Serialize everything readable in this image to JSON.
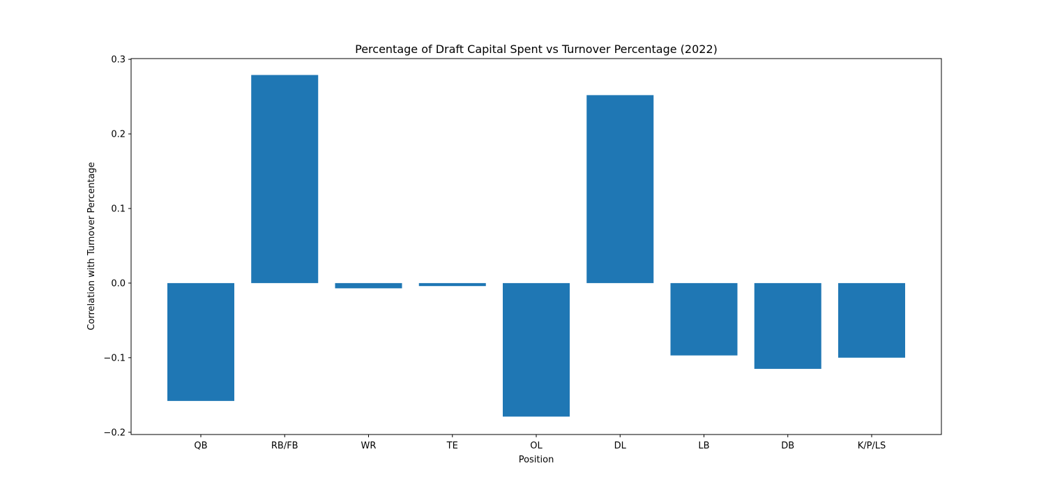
{
  "chart_data": {
    "type": "bar",
    "title": "Percentage of Draft Capital Spent vs Turnover Percentage (2022)",
    "xlabel": "Position",
    "ylabel": "Correlation with Turnover Percentage",
    "categories": [
      "QB",
      "RB/FB",
      "WR",
      "TE",
      "OL",
      "DL",
      "LB",
      "DB",
      "K/P/LS"
    ],
    "values": [
      -0.158,
      0.279,
      -0.007,
      -0.004,
      -0.179,
      0.252,
      -0.097,
      -0.115,
      -0.1
    ],
    "ylim": [
      -0.203,
      0.301
    ],
    "yticks": [
      -0.2,
      -0.1,
      0.0,
      0.1,
      0.2,
      0.3
    ],
    "ytick_labels": [
      "−0.2",
      "−0.1",
      "0.0",
      "0.1",
      "0.2",
      "0.3"
    ],
    "bar_color": "#1f77b4",
    "grid": false,
    "legend": "none"
  }
}
